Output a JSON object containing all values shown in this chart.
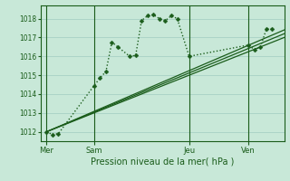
{
  "background_color": "#c8e8d8",
  "grid_color": "#a0ccc0",
  "line_color": "#1a5c1a",
  "title": "Pression niveau de la mer( hPa )",
  "ylim": [
    1011.5,
    1018.7
  ],
  "yticks": [
    1012,
    1013,
    1014,
    1015,
    1016,
    1017,
    1018
  ],
  "day_labels": [
    "Mer",
    "Sam",
    "Jeu",
    "Ven"
  ],
  "day_positions": [
    0,
    8,
    24,
    34
  ],
  "xlim": [
    -1,
    40
  ],
  "lines": [
    {
      "x": [
        0,
        1,
        2,
        8,
        9,
        10,
        11,
        12,
        14,
        15,
        16,
        17,
        18,
        19,
        20,
        21,
        22,
        24,
        34,
        35,
        36,
        37,
        38
      ],
      "y": [
        1012.0,
        1011.85,
        1011.9,
        1014.45,
        1014.85,
        1015.2,
        1016.75,
        1016.5,
        1016.0,
        1016.05,
        1017.9,
        1018.15,
        1018.2,
        1018.0,
        1017.9,
        1018.15,
        1018.0,
        1016.0,
        1016.6,
        1016.35,
        1016.5,
        1017.45,
        1017.45
      ],
      "linestyle": ":",
      "marker": "D",
      "markersize": 2.5,
      "linewidth": 1.0
    },
    {
      "x": [
        0,
        40
      ],
      "y": [
        1012.0,
        1017.0
      ],
      "linestyle": "-",
      "marker": null,
      "markersize": 0,
      "linewidth": 0.9
    },
    {
      "x": [
        0,
        40
      ],
      "y": [
        1012.0,
        1017.2
      ],
      "linestyle": "-",
      "marker": null,
      "markersize": 0,
      "linewidth": 0.9
    },
    {
      "x": [
        0,
        40
      ],
      "y": [
        1012.0,
        1017.4
      ],
      "linestyle": "-",
      "marker": null,
      "markersize": 0,
      "linewidth": 0.9
    }
  ]
}
